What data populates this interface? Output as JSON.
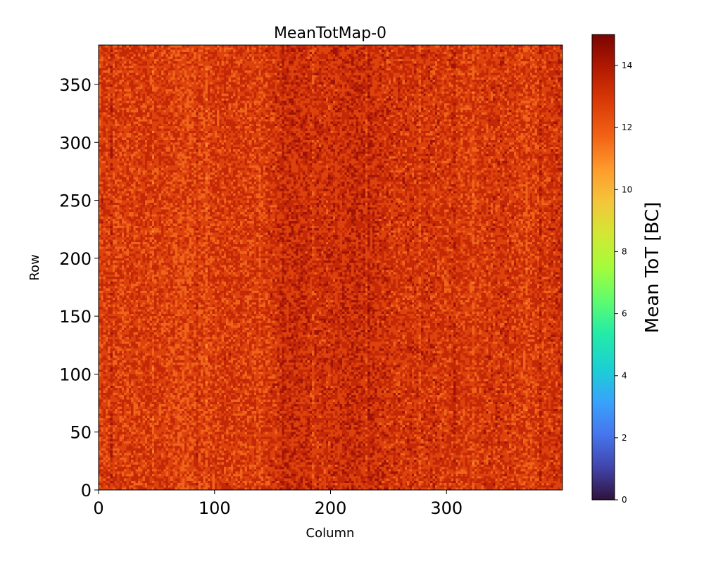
{
  "chart_data": {
    "type": "heatmap",
    "title": "MeanTotMap-0",
    "xlabel": "Column",
    "ylabel": "Row",
    "xlim": [
      0,
      400
    ],
    "ylim": [
      0,
      384
    ],
    "x_ticks": [
      0,
      100,
      200,
      300
    ],
    "y_ticks": [
      0,
      50,
      100,
      150,
      200,
      250,
      300,
      350
    ],
    "colorbar": {
      "label": "Mean ToT [BC]",
      "range": [
        0,
        15
      ],
      "ticks": [
        0,
        2,
        4,
        6,
        8,
        10,
        12,
        14
      ],
      "colormap": "turbo"
    },
    "value_summary": {
      "typical_range": [
        12,
        15
      ],
      "dominant_colors": [
        "#ff7a1e",
        "#d7380a",
        "#a3160a",
        "#7a0403"
      ]
    }
  }
}
